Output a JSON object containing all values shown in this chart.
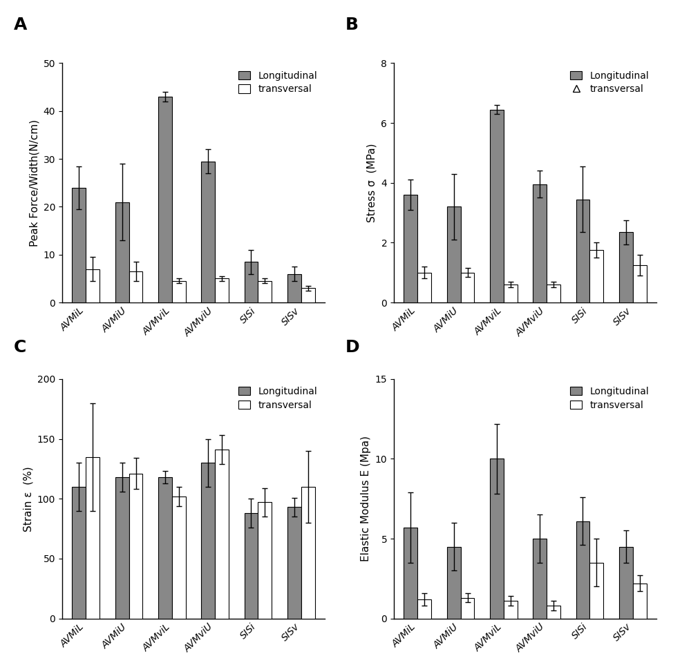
{
  "categories": [
    "AVMiL",
    "AVMiU",
    "AVMviL",
    "AVMviU",
    "SISi",
    "SISv"
  ],
  "panel_A": {
    "title": "A",
    "ylabel": "Peak Force/Width(N/cm)",
    "ylim": [
      0,
      50
    ],
    "yticks": [
      0,
      10,
      20,
      30,
      40,
      50
    ],
    "long_mean": [
      24.0,
      21.0,
      43.0,
      29.5,
      8.5,
      6.0
    ],
    "long_err": [
      4.5,
      8.0,
      1.0,
      2.5,
      2.5,
      1.5
    ],
    "trans_mean": [
      7.0,
      6.5,
      4.5,
      5.0,
      4.5,
      3.0
    ],
    "trans_err": [
      2.5,
      2.0,
      0.5,
      0.5,
      0.5,
      0.5
    ]
  },
  "panel_B": {
    "title": "B",
    "ylabel": "Stress σ  (MPa)",
    "ylim": [
      0,
      8
    ],
    "yticks": [
      0,
      2,
      4,
      6,
      8
    ],
    "long_mean": [
      3.6,
      3.2,
      6.45,
      3.95,
      3.45,
      2.35
    ],
    "long_err": [
      0.5,
      1.1,
      0.15,
      0.45,
      1.1,
      0.4
    ],
    "trans_mean": [
      1.0,
      1.0,
      0.6,
      0.6,
      1.75,
      1.25
    ],
    "trans_err": [
      0.2,
      0.15,
      0.1,
      0.1,
      0.25,
      0.35
    ],
    "trans_triangle": true
  },
  "panel_C": {
    "title": "C",
    "ylabel": "Strain ε  (%)",
    "ylim": [
      0,
      200
    ],
    "yticks": [
      0,
      50,
      100,
      150,
      200
    ],
    "long_mean": [
      110,
      118,
      118,
      130,
      88,
      93
    ],
    "long_err": [
      20,
      12,
      5,
      20,
      12,
      8
    ],
    "trans_mean": [
      135,
      121,
      102,
      141,
      97,
      110
    ],
    "trans_err": [
      45,
      13,
      8,
      12,
      12,
      30
    ]
  },
  "panel_D": {
    "title": "D",
    "ylabel": "Elastic Modulus E (Mpa)",
    "ylim": [
      0,
      15
    ],
    "yticks": [
      0,
      5,
      10,
      15
    ],
    "long_mean": [
      5.7,
      4.5,
      10.0,
      5.0,
      6.1,
      4.5
    ],
    "long_err": [
      2.2,
      1.5,
      2.2,
      1.5,
      1.5,
      1.0
    ],
    "trans_mean": [
      1.2,
      1.3,
      1.1,
      0.8,
      3.5,
      2.2
    ],
    "trans_err": [
      0.4,
      0.3,
      0.3,
      0.3,
      1.5,
      0.5
    ]
  },
  "bar_color_long": "#888888",
  "bar_color_trans": "#ffffff",
  "bar_edgecolor": "#000000",
  "bar_width": 0.32,
  "label_fontsize": 11,
  "tick_fontsize": 10,
  "panel_label_fontsize": 18,
  "legend_fontsize": 10,
  "figure_bg": "#f5f5f5"
}
